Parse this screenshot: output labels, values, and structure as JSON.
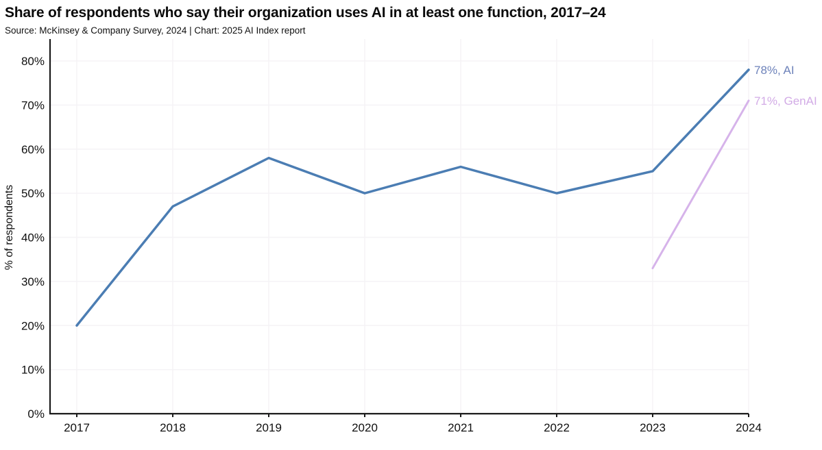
{
  "header": {
    "title": "Share of respondents who say their organization uses AI in at least one function, 2017–24",
    "source": "Source: McKinsey & Company Survey, 2024 | Chart: 2025 AI Index report"
  },
  "chart_data": {
    "type": "line",
    "title": "Share of respondents who say their organization uses AI in at least one function, 2017–24",
    "xlabel": "",
    "ylabel": "% of respondents",
    "ylim": [
      0,
      80
    ],
    "ytick_step": 10,
    "ytick_suffix": "%",
    "x": [
      2017,
      2018,
      2019,
      2020,
      2021,
      2022,
      2023,
      2024
    ],
    "grid": true,
    "legend_position": "end-of-line-labels",
    "axis_color": "#1a1a1a",
    "grid_color": "#f5f3f6",
    "tick_color": "#101010",
    "series": [
      {
        "name": "AI",
        "x": [
          2017,
          2018,
          2019,
          2020,
          2021,
          2022,
          2023,
          2024
        ],
        "values": [
          20,
          47,
          58,
          50,
          56,
          50,
          55,
          78
        ],
        "color": "#4b7db3",
        "stroke_width": 3.5,
        "end_label": "78%, AI",
        "label_color": "#6d82ba"
      },
      {
        "name": "GenAI",
        "x": [
          2023,
          2024
        ],
        "values": [
          33,
          71
        ],
        "color": "#d6b3ea",
        "stroke_width": 3,
        "end_label": "71%, GenAI",
        "label_color": "#d2abe6"
      }
    ]
  }
}
